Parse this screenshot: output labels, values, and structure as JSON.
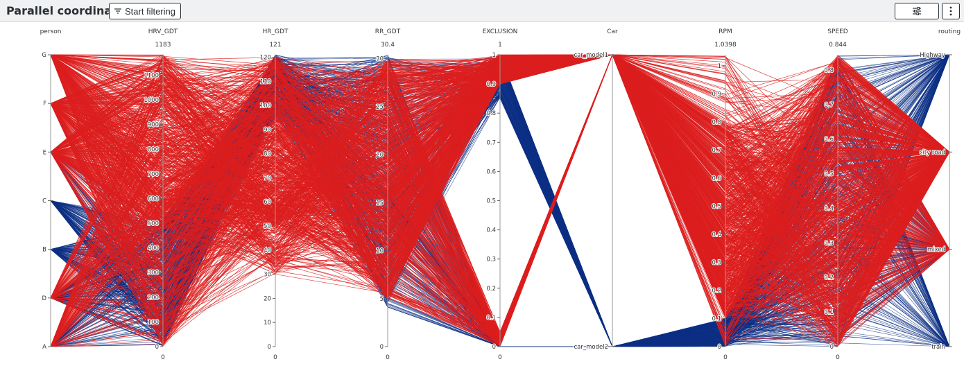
{
  "header": {
    "title": "Parallel coordinate",
    "filter_button_label": "Start filtering",
    "settings_icon": "sliders-icon",
    "more_icon": "vertical-dots-icon"
  },
  "colors": {
    "series_blue": "#0d2f85",
    "series_red": "#dc1f1f",
    "axis": "#999999"
  },
  "chart_data": {
    "type": "parallel-coordinates",
    "title": "",
    "axes": [
      {
        "name": "person",
        "kind": "categorical",
        "categories": [
          "A",
          "D",
          "B",
          "C",
          "E",
          "F",
          "G"
        ],
        "max_label": "",
        "min_label": "",
        "label_side": "left"
      },
      {
        "name": "HRV_GDT",
        "kind": "numeric",
        "min": 0,
        "max": 1183,
        "max_label": "1183",
        "min_label": "0",
        "ticks": [
          0,
          100,
          200,
          300,
          400,
          500,
          600,
          700,
          800,
          900,
          1000,
          1100
        ]
      },
      {
        "name": "HR_GDT",
        "kind": "numeric",
        "min": 0,
        "max": 121,
        "max_label": "121",
        "min_label": "0",
        "ticks": [
          0,
          10,
          20,
          30,
          40,
          50,
          60,
          70,
          80,
          90,
          100,
          110,
          120
        ]
      },
      {
        "name": "RR_GDT",
        "kind": "numeric",
        "min": 0,
        "max": 30.4,
        "max_label": "30.4",
        "min_label": "0",
        "ticks": [
          0,
          5,
          10,
          15,
          20,
          25,
          30
        ]
      },
      {
        "name": "EXCLUSION",
        "kind": "numeric",
        "min": 0,
        "max": 1,
        "max_label": "1",
        "min_label": "0",
        "ticks": [
          0,
          0.1,
          0.2,
          0.3,
          0.4,
          0.5,
          0.6,
          0.7,
          0.8,
          0.9,
          1
        ]
      },
      {
        "name": "Car",
        "kind": "categorical",
        "categories": [
          "car_model2",
          "car_model1"
        ],
        "max_label": "",
        "min_label": "",
        "label_side": "left"
      },
      {
        "name": "RPM",
        "kind": "numeric",
        "min": 0,
        "max": 1.0398,
        "max_label": "1.0398",
        "min_label": "0",
        "ticks": [
          0,
          0.1,
          0.2,
          0.3,
          0.4,
          0.5,
          0.6,
          0.7,
          0.8,
          0.9,
          1
        ]
      },
      {
        "name": "SPEED",
        "kind": "numeric",
        "min": 0,
        "max": 0.844,
        "max_label": "0.844",
        "min_label": "0",
        "ticks": [
          0,
          0.1,
          0.2,
          0.3,
          0.4,
          0.5,
          0.6,
          0.7,
          0.8
        ]
      },
      {
        "name": "routing",
        "kind": "categorical",
        "categories": [
          "train",
          "mixed",
          "city road",
          "Highway"
        ],
        "max_label": "",
        "min_label": "",
        "label_side": "left"
      }
    ],
    "series": [
      {
        "color": "#0d2f85",
        "typical_values": {
          "person": [
            "A",
            "D",
            "B",
            "C",
            "E"
          ],
          "HRV_GDT": [
            0,
            500
          ],
          "HR_GDT": [
            95,
            121
          ],
          "RR_GDT": [
            4,
            30.4
          ],
          "EXCLUSION": [
            0,
            1
          ],
          "Car": [
            "car_model2"
          ],
          "RPM": [
            0,
            0.1
          ],
          "SPEED": [
            0,
            0.844
          ],
          "routing": [
            "Highway",
            "mixed",
            "train"
          ]
        }
      },
      {
        "color": "#dc1f1f",
        "typical_values": {
          "person": [
            "G",
            "F",
            "E",
            "D",
            "A"
          ],
          "HRV_GDT": [
            0,
            1183
          ],
          "HR_GDT": [
            30,
            120
          ],
          "RR_GDT": [
            5,
            30
          ],
          "EXCLUSION": [
            0,
            1
          ],
          "Car": [
            "car_model1"
          ],
          "RPM": [
            0,
            1.0398
          ],
          "SPEED": [
            0,
            0.844
          ],
          "routing": [
            "city road",
            "mixed"
          ]
        }
      }
    ],
    "legend": "none",
    "grid": false
  }
}
